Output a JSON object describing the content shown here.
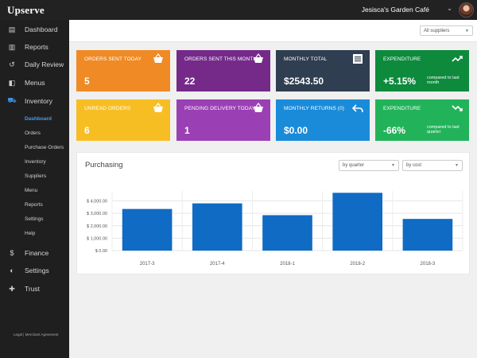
{
  "topbar": {
    "logo": "Upserve",
    "venue": "Jesisca's Garden Café",
    "chevron_icon": "chevron-down-icon"
  },
  "sidebar": {
    "items": [
      {
        "label": "Dashboard",
        "icon": "dashboard-icon",
        "glyph": "▤"
      },
      {
        "label": "Reports",
        "icon": "bar-chart-icon",
        "glyph": "▥"
      },
      {
        "label": "Daily Review",
        "icon": "history-icon",
        "glyph": "↺"
      },
      {
        "label": "Menus",
        "icon": "menu-book-icon",
        "glyph": "◧"
      },
      {
        "label": "Inventory",
        "icon": "truck-icon",
        "glyph": "⛟"
      }
    ],
    "subitems": [
      "Dashboard",
      "Orders",
      "Purchase Orders",
      "Inventory",
      "Suppliers",
      "Menu",
      "Reports",
      "Settings",
      "Help"
    ],
    "lower_items": [
      {
        "label": "Finance",
        "icon": "dollar-icon",
        "glyph": "$"
      },
      {
        "label": "Settings",
        "icon": "toggle-icon",
        "glyph": "◐"
      },
      {
        "label": "Trust",
        "icon": "plus-circle-icon",
        "glyph": "✚"
      }
    ],
    "footer": "Legal | Merchant Agreement"
  },
  "filters": {
    "suppliers": "All suppliers",
    "period": "by quarter",
    "metric": "by cost"
  },
  "tiles": [
    {
      "title": "ORDERS SENT TODAY",
      "value": "5",
      "sub": "",
      "color": "#f08a24",
      "icon": "basket-icon"
    },
    {
      "title": "ORDERS SENT THIS MONTH",
      "value": "22",
      "sub": "",
      "color": "#752a8a",
      "icon": "basket-icon"
    },
    {
      "title": "MONTHLY TOTAL",
      "value": "$2543.50",
      "sub": "",
      "color": "#2f3e50",
      "icon": "document-icon"
    },
    {
      "title": "EXPENDITURE",
      "value": "+5.15%",
      "sub": "compared to last month",
      "color": "#0d8a3c",
      "icon": "trend-up-icon"
    },
    {
      "title": "UNREAD ORDERS",
      "value": "6",
      "sub": "",
      "color": "#f7be24",
      "icon": "basket-icon"
    },
    {
      "title": "PENDING DELIVERY TODAY",
      "value": "1",
      "sub": "",
      "color": "#9a40b4",
      "icon": "basket-icon"
    },
    {
      "title": "MONTHLY RETURNS (0)",
      "value": "$0.00",
      "sub": "",
      "color": "#1a8bd9",
      "icon": "return-arrow-icon"
    },
    {
      "title": "EXPENDITURE",
      "value": "-66%",
      "sub": "compared to last quarter",
      "color": "#22b35a",
      "icon": "trend-down-icon"
    }
  ],
  "chart_data": {
    "type": "bar",
    "title": "Purchasing",
    "categories": [
      "2017-3",
      "2017-4",
      "2018-1",
      "2018-2",
      "2018-3"
    ],
    "values": [
      3350,
      3800,
      2850,
      4650,
      2550
    ],
    "yticks": [
      0,
      1000,
      2000,
      3000,
      4000
    ],
    "ytick_labels": [
      "$ 0.00",
      "$ 1,000.00",
      "$ 2,000.00",
      "$ 3,000.00",
      "$ 4,000.00"
    ],
    "ylim": [
      0,
      4800
    ],
    "bar_color": "#0f6bc4",
    "grid": true,
    "xlabel": "",
    "ylabel": ""
  }
}
